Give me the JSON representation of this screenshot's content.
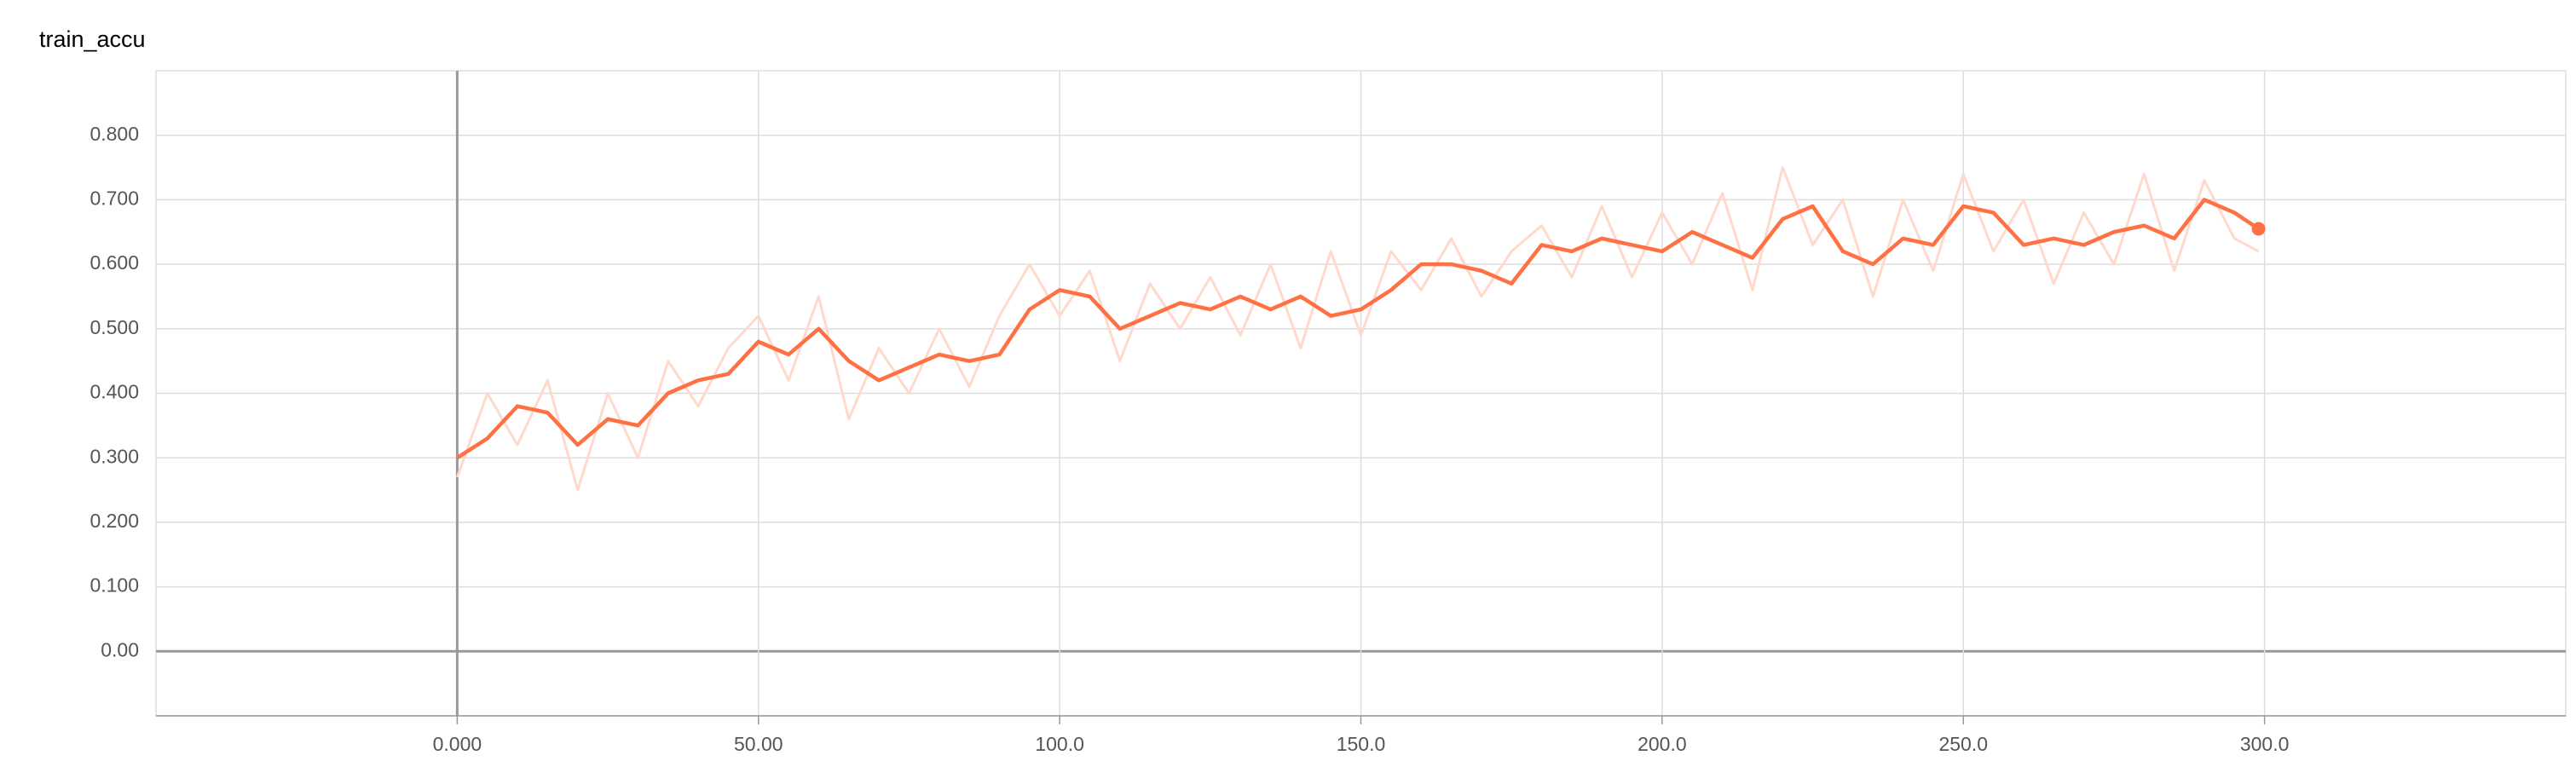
{
  "chart_data": {
    "type": "line",
    "title": "train_accu",
    "x": [
      0,
      5,
      10,
      15,
      20,
      25,
      30,
      35,
      40,
      45,
      50,
      55,
      60,
      65,
      70,
      75,
      80,
      85,
      90,
      95,
      100,
      105,
      110,
      115,
      120,
      125,
      130,
      135,
      140,
      145,
      150,
      155,
      160,
      165,
      170,
      175,
      180,
      185,
      190,
      195,
      200,
      205,
      210,
      215,
      220,
      225,
      230,
      235,
      240,
      245,
      250,
      255,
      260,
      265,
      270,
      275,
      280,
      285,
      290,
      295,
      299
    ],
    "series": [
      {
        "color": "#ffd9cc",
        "values": [
          0.27,
          0.4,
          0.32,
          0.42,
          0.25,
          0.4,
          0.3,
          0.45,
          0.38,
          0.47,
          0.52,
          0.42,
          0.55,
          0.36,
          0.47,
          0.4,
          0.5,
          0.41,
          0.52,
          0.6,
          0.52,
          0.59,
          0.45,
          0.57,
          0.5,
          0.58,
          0.49,
          0.6,
          0.47,
          0.62,
          0.49,
          0.62,
          0.56,
          0.64,
          0.55,
          0.62,
          0.66,
          0.58,
          0.69,
          0.58,
          0.68,
          0.6,
          0.71,
          0.56,
          0.75,
          0.63,
          0.7,
          0.55,
          0.7,
          0.59,
          0.74,
          0.62,
          0.7,
          0.57,
          0.68,
          0.6,
          0.74,
          0.59,
          0.73,
          0.64,
          0.62
        ]
      },
      {
        "color": "#ff7043",
        "values": [
          0.3,
          0.33,
          0.38,
          0.37,
          0.32,
          0.36,
          0.35,
          0.4,
          0.42,
          0.43,
          0.48,
          0.46,
          0.5,
          0.45,
          0.42,
          0.44,
          0.46,
          0.45,
          0.46,
          0.53,
          0.56,
          0.55,
          0.5,
          0.52,
          0.54,
          0.53,
          0.55,
          0.53,
          0.55,
          0.52,
          0.53,
          0.56,
          0.6,
          0.6,
          0.59,
          0.57,
          0.63,
          0.62,
          0.64,
          0.63,
          0.62,
          0.65,
          0.63,
          0.61,
          0.67,
          0.69,
          0.62,
          0.6,
          0.64,
          0.63,
          0.69,
          0.68,
          0.63,
          0.64,
          0.63,
          0.65,
          0.66,
          0.64,
          0.7,
          0.68,
          0.655
        ]
      }
    ],
    "xlim": [
      -50,
      350
    ],
    "xticks": [
      {
        "value": 0,
        "label": "0.000"
      },
      {
        "value": 50,
        "label": "50.00"
      },
      {
        "value": 100,
        "label": "100.0"
      },
      {
        "value": 150,
        "label": "150.0"
      },
      {
        "value": 200,
        "label": "200.0"
      },
      {
        "value": 250,
        "label": "250.0"
      },
      {
        "value": 300,
        "label": "300.0"
      }
    ],
    "ylim": [
      -0.1,
      0.9
    ],
    "yticks": [
      {
        "value": 0,
        "label": "0.00"
      },
      {
        "value": 0.1,
        "label": "0.100"
      },
      {
        "value": 0.2,
        "label": "0.200"
      },
      {
        "value": 0.3,
        "label": "0.300"
      },
      {
        "value": 0.4,
        "label": "0.400"
      },
      {
        "value": 0.5,
        "label": "0.500"
      },
      {
        "value": 0.6,
        "label": "0.600"
      },
      {
        "value": 0.7,
        "label": "0.700"
      },
      {
        "value": 0.8,
        "label": "0.800"
      }
    ],
    "grid": true
  }
}
